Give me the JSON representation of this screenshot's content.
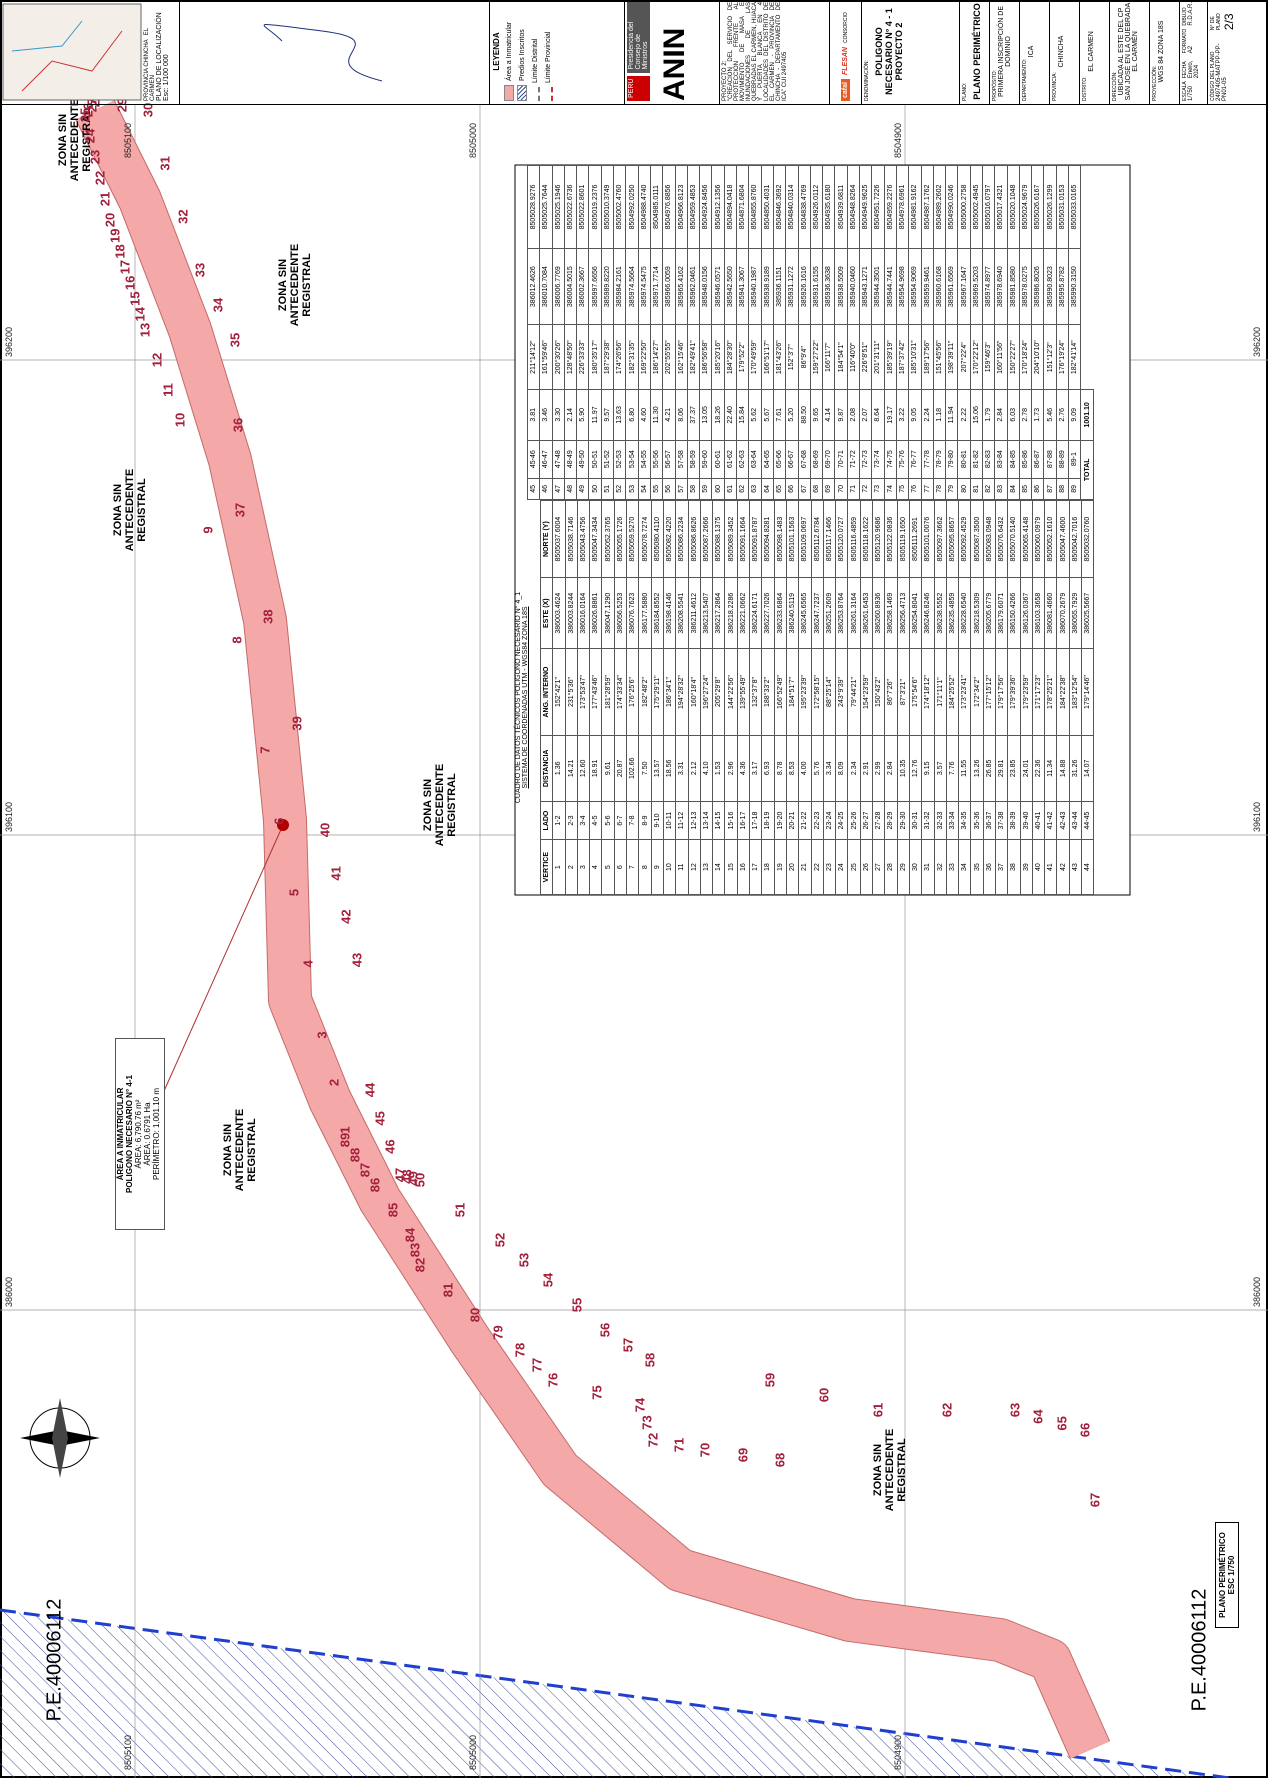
{
  "sheet": {
    "zones": [
      "ZONA SIN ANTECEDENTE REGISTRAL",
      "ZONA SIN ANTECEDENTE REGISTRAL",
      "ZONA SIN ANTECEDENTE REGISTRAL",
      "ZONA SIN ANTECEDENTE REGISTRAL",
      "ZONA SIN ANTECEDENTE REGISTRAL",
      "ZONA SIN ANTECEDENTE REGISTRAL"
    ],
    "callout": [
      "ÁREA A INMATRICULAR",
      "POLIGONO NECESARIO N° 4-1",
      "ÁREA: 6,790.76 m²",
      "ÁREA: 0.6791 Ha",
      "PERÍMETRO: 1,001.10 m"
    ],
    "plan_label": [
      "PLANO PERIMÉTRICO",
      "ESC 1/750"
    ],
    "parcels": [
      "P.E.40006112",
      "P.E.40006112"
    ],
    "eastings": [
      "396200",
      "396100",
      "386000"
    ],
    "northings": [
      "8505100",
      "8505000",
      "8504900"
    ],
    "vertices": [
      1,
      2,
      3,
      4,
      5,
      6,
      7,
      8,
      9,
      10,
      11,
      12,
      13,
      14,
      15,
      16,
      17,
      18,
      19,
      20,
      21,
      22,
      23,
      24,
      25,
      26,
      27,
      28,
      29,
      30,
      31,
      32,
      33,
      34,
      35,
      36,
      37,
      38,
      39,
      40,
      41,
      42,
      43,
      44,
      45,
      46,
      47,
      48,
      49,
      50,
      51,
      52,
      53,
      54,
      55,
      56,
      57,
      58,
      59,
      60,
      61,
      62,
      63,
      64,
      65,
      66,
      67,
      68,
      69,
      70,
      71,
      72,
      73,
      74,
      75,
      76,
      77,
      78,
      79,
      80,
      81,
      82,
      83,
      84,
      85,
      86,
      87,
      88,
      89
    ]
  },
  "table": {
    "title": "CUADRO DE DATOS TÉCNICOS POLIGONO NECESARIO N° 4_1",
    "subtitle": "SISTEMA DE COORDENADAS UTM - WGS84 ZONA 18S",
    "header": [
      "VERTICE",
      "LADO",
      "DISTANCIA",
      "ANG. INTERNO",
      "ESTE (X)",
      "NORTE (Y)"
    ],
    "rows": [
      [
        "1",
        "1-2",
        "1.36",
        "152°42'1\"",
        "386003.4624",
        "8505037.6004"
      ],
      [
        "2",
        "2-3",
        "14.21",
        "231°5'36\"",
        "386003.8244",
        "8505038.7146"
      ],
      [
        "3",
        "3-4",
        "12.60",
        "173°53'47\"",
        "386016.0164",
        "8505043.4756"
      ],
      [
        "4",
        "4-5",
        "18.91",
        "177°43'46\"",
        "386026.8861",
        "8505047.3434"
      ],
      [
        "5",
        "5-6",
        "9.61",
        "181°28'59\"",
        "386047.1290",
        "8505052.3765"
      ],
      [
        "6",
        "6-7",
        "20.87",
        "174°33'34\"",
        "386056.5253",
        "8505055.1726"
      ],
      [
        "7",
        "7-8",
        "102.66",
        "176°25'6\"",
        "386076.7623",
        "8505059.5270"
      ],
      [
        "8",
        "8-9",
        "7.50",
        "182°48'2\"",
        "386177.5880",
        "8505078.7274"
      ],
      [
        "9",
        "9-10",
        "13.57",
        "175°29'11\"",
        "386184.8552",
        "8505080.4110"
      ],
      [
        "10",
        "10-11",
        "18.56",
        "186°34'1\"",
        "386198.4146",
        "8505082.4220"
      ],
      [
        "11",
        "11-12",
        "3.31",
        "194°28'32\"",
        "386208.5541",
        "8505086.2234"
      ],
      [
        "12",
        "12-13",
        "2.12",
        "160°18'4\"",
        "386211.4612",
        "8505086.8626"
      ],
      [
        "13",
        "13-14",
        "4.10",
        "196°27'24\"",
        "386213.5407",
        "8505087.2666"
      ],
      [
        "14",
        "14-15",
        "1.53",
        "205°29'8\"",
        "386217.2864",
        "8505088.1375"
      ],
      [
        "15",
        "15-16",
        "2.96",
        "144°22'56\"",
        "386218.2286",
        "8505089.3452"
      ],
      [
        "16",
        "16-17",
        "4.36",
        "139°55'49\"",
        "386221.0662",
        "8505091.1664"
      ],
      [
        "17",
        "17-18",
        "3.17",
        "132°37'8\"",
        "386224.6171",
        "8505091.8787"
      ],
      [
        "18",
        "18-19",
        "6.93",
        "188°33'2\"",
        "386227.7026",
        "8505094.8281"
      ],
      [
        "19",
        "19-20",
        "8.78",
        "166°52'49\"",
        "386233.6864",
        "8505098.1483"
      ],
      [
        "20",
        "20-21",
        "8.53",
        "184°51'7\"",
        "386240.5119",
        "8505101.1563"
      ],
      [
        "21",
        "21-22",
        "4.00",
        "195°23'39\"",
        "386245.6565",
        "8505109.0697"
      ],
      [
        "22",
        "22-23",
        "5.76",
        "172°58'15\"",
        "386247.7237",
        "8505112.6784"
      ],
      [
        "23",
        "23-24",
        "3.34",
        "88°25'14\"",
        "386251.2609",
        "8505117.1466"
      ],
      [
        "24",
        "24-25",
        "8.09",
        "243°9'39\"",
        "386253.8764",
        "8505120.0727"
      ],
      [
        "25",
        "25-26",
        "2.34",
        "79°44'21\"",
        "386261.3164",
        "8505116.4859"
      ],
      [
        "26",
        "26-27",
        "2.91",
        "154°23'59\"",
        "386261.6453",
        "8505118.1622"
      ],
      [
        "27",
        "27-28",
        "2.99",
        "150°43'2\"",
        "386260.8936",
        "8505120.9686"
      ],
      [
        "28",
        "28-29",
        "2.84",
        "86°7'26\"",
        "386258.1469",
        "8505122.0836"
      ],
      [
        "29",
        "29-30",
        "10.35",
        "87°3'21\"",
        "386256.4713",
        "8505119.1650"
      ],
      [
        "30",
        "30-31",
        "12.76",
        "175°54'6\"",
        "386254.8041",
        "8505111.2691"
      ],
      [
        "31",
        "31-32",
        "9.15",
        "174°18'12\"",
        "386246.8246",
        "8505101.0076"
      ],
      [
        "32",
        "32-33",
        "3.57",
        "171°11'1\"",
        "386238.5552",
        "8505097.3662"
      ],
      [
        "33",
        "33-34",
        "7.76",
        "184°25'52\"",
        "386235.4859",
        "8505095.8657"
      ],
      [
        "34",
        "34-35",
        "11.55",
        "173°23'41\"",
        "386228.6540",
        "8505092.4529"
      ],
      [
        "35",
        "35-36",
        "13.26",
        "172°34'2\"",
        "386218.5309",
        "8505087.3500"
      ],
      [
        "36",
        "36-37",
        "26.85",
        "177°15'12\"",
        "386205.6779",
        "8505083.0948"
      ],
      [
        "37",
        "37-38",
        "29.81",
        "179°17'56\"",
        "386179.6071",
        "8505076.6432"
      ],
      [
        "38",
        "38-39",
        "23.85",
        "179°39'36\"",
        "386150.4266",
        "8505070.5140"
      ],
      [
        "39",
        "39-40",
        "24.01",
        "179°23'59\"",
        "386126.0367",
        "8505065.4148"
      ],
      [
        "40",
        "40-41",
        "22.36",
        "171°17'23\"",
        "386103.3658",
        "8505060.0979"
      ],
      [
        "41",
        "41-42",
        "11.34",
        "178°25'21\"",
        "386081.4660",
        "8505052.1610"
      ],
      [
        "42",
        "42-43",
        "14.88",
        "184°22'38\"",
        "386070.2679",
        "8505047.4600"
      ],
      [
        "43",
        "43-44",
        "31.26",
        "183°12'54\"",
        "386055.7929",
        "8505042.7016"
      ],
      [
        "44",
        "44-45",
        "14.07",
        "179°14'46\"",
        "386025.5667",
        "8505032.0760"
      ],
      [
        "45",
        "45-46",
        "3.81",
        "211°14'12\"",
        "386012.4626",
        "8505028.9276"
      ],
      [
        "46",
        "46-47",
        "3.46",
        "161°59'46\"",
        "386010.7084",
        "8505025.7644"
      ],
      [
        "47",
        "47-48",
        "3.30",
        "200°30'26\"",
        "386006.7769",
        "8505025.1946"
      ],
      [
        "48",
        "48-49",
        "2.14",
        "128°48'50\"",
        "386004.5015",
        "8505022.6736"
      ],
      [
        "49",
        "49-50",
        "5.90",
        "226°33'33\"",
        "386002.3667",
        "8505022.8601"
      ],
      [
        "50",
        "50-51",
        "11.97",
        "180°35'17\"",
        "385997.6656",
        "8505019.2376"
      ],
      [
        "51",
        "51-52",
        "9.57",
        "187°29'38\"",
        "385989.8220",
        "8505010.3749"
      ],
      [
        "52",
        "52-53",
        "13.63",
        "174°26'56\"",
        "385984.2161",
        "8505002.4760"
      ],
      [
        "53",
        "53-54",
        "6.80",
        "182°31'35\"",
        "385974.5664",
        "8504992.0250"
      ],
      [
        "54",
        "54-55",
        "4.60",
        "169°22'50\"",
        "385974.5475",
        "8504988.4740"
      ],
      [
        "55",
        "55-56",
        "11.30",
        "186°14'27\"",
        "385971.7714",
        "8504985.0111"
      ],
      [
        "56",
        "56-57",
        "4.21",
        "202°55'55\"",
        "385966.0059",
        "8504976.8856"
      ],
      [
        "57",
        "57-58",
        "8.06",
        "162°15'46\"",
        "385965.4162",
        "8504966.8123"
      ],
      [
        "58",
        "58-59",
        "37.37",
        "182°49'41\"",
        "385962.0461",
        "8504959.4853"
      ],
      [
        "59",
        "59-60",
        "13.05",
        "186°56'58\"",
        "385948.0156",
        "8504924.8456"
      ],
      [
        "60",
        "60-61",
        "18.26",
        "185°20'16\"",
        "385946.0571",
        "8504912.1356"
      ],
      [
        "61",
        "61-62",
        "22.40",
        "184°28'30\"",
        "385942.5650",
        "8504894.0418"
      ],
      [
        "62",
        "62-63",
        "15.84",
        "179°52'2\"",
        "385941.3067",
        "8504871.6804"
      ],
      [
        "63",
        "63-64",
        "5.62",
        "170°49'59\"",
        "385940.1987",
        "8504855.8760"
      ],
      [
        "64",
        "64-65",
        "5.67",
        "166°51'17\"",
        "385938.9189",
        "8504850.4031"
      ],
      [
        "65",
        "65-66",
        "7.61",
        "181°43'26\"",
        "385936.1151",
        "8504846.3692"
      ],
      [
        "66",
        "66-67",
        "5.20",
        "152°3'7\"",
        "385931.1272",
        "8504840.0314"
      ],
      [
        "67",
        "67-68",
        "88.50",
        "86°9'4\"",
        "385926.1616",
        "8504838.4769"
      ],
      [
        "68",
        "68-69",
        "9.65",
        "159°27'22\"",
        "385931.6155",
        "8504926.0112"
      ],
      [
        "69",
        "69-70",
        "4.14",
        "166°11'7\"",
        "385936.3638",
        "8504935.6180"
      ],
      [
        "70",
        "70-71",
        "9.87",
        "184°54'1\"",
        "385938.5509",
        "8504939.6811"
      ],
      [
        "71",
        "71-72",
        "2.08",
        "116°40'0\"",
        "385940.0460",
        "8504948.8264"
      ],
      [
        "72",
        "72-73",
        "2.07",
        "226°8'51\"",
        "385943.1271",
        "8504949.9625"
      ],
      [
        "73",
        "73-74",
        "8.64",
        "201°31'11\"",
        "385944.3501",
        "8504951.7226"
      ],
      [
        "74",
        "74-75",
        "19.17",
        "185°39'19\"",
        "385944.7441",
        "8504959.2276"
      ],
      [
        "75",
        "75-76",
        "3.22",
        "187°37'42\"",
        "385954.9698",
        "8504978.6961"
      ],
      [
        "76",
        "76-77",
        "9.05",
        "185°10'31\"",
        "385954.9069",
        "8504981.9162"
      ],
      [
        "77",
        "77-78",
        "2.24",
        "189°17'56\"",
        "385959.9461",
        "8504987.1762"
      ],
      [
        "78",
        "78-79",
        "1.18",
        "151°45'56\"",
        "385960.6168",
        "8504989.2602"
      ],
      [
        "79",
        "79-80",
        "11.94",
        "198°39'11\"",
        "385961.6569",
        "8504990.0246"
      ],
      [
        "80",
        "80-81",
        "2.22",
        "207°22'4\"",
        "385967.1647",
        "8505000.2758"
      ],
      [
        "81",
        "81-82",
        "15.06",
        "170°22'12\"",
        "385969.5203",
        "8505002.4945"
      ],
      [
        "82",
        "82-83",
        "1.79",
        "159°46'3\"",
        "385974.8977",
        "8505016.0797"
      ],
      [
        "83",
        "83-84",
        "2.84",
        "160°11'56\"",
        "385978.6940",
        "8505017.4321"
      ],
      [
        "84",
        "84-85",
        "6.03",
        "150°22'27\"",
        "385981.8580",
        "8505020.1048"
      ],
      [
        "85",
        "85-86",
        "2.78",
        "170°18'24\"",
        "385978.0275",
        "8505024.9679"
      ],
      [
        "86",
        "86-87",
        "1.73",
        "204°10'10\"",
        "385986.8026",
        "8505026.6167"
      ],
      [
        "87",
        "87-88",
        "5.46",
        "151°12'3\"",
        "385990.8023",
        "8505026.1299"
      ],
      [
        "88",
        "88-89",
        "2.76",
        "176°19'24\"",
        "385995.8782",
        "8505031.0153"
      ],
      [
        "89",
        "89-1",
        "9.09",
        "182°41'14\"",
        "385990.3150",
        "8505033.0165"
      ]
    ],
    "total_label": "TOTAL",
    "total": "1001.10"
  },
  "title_block": {
    "location_title": "PLANO DE LOCALIZACIÓN",
    "location_scale": "Esc: 1/100 000",
    "location_labels": [
      "PROVINCIA CHINCHA",
      "EL CARMEN"
    ],
    "legend_title": "LEYENDA",
    "legend": [
      "Área a Inmatricular",
      "Predios Inscritos",
      "Límite Distrital",
      "Límite Provincial"
    ],
    "org": [
      "PERÚ",
      "Presidencia del Consejo de Ministros",
      "ANIN"
    ],
    "project_label": "PROYECTO 2:",
    "project": "\"CREACIÓN DEL SERVICIO DE PROTECCIÓN FRENTE AL MOVIMIENTO DE MASA E INUNDACIONES DE LAS QUEBRADAS EL CARMEN, HUACA Y PUERTA BLANCA EN 4 LOCALIDADES DEL DISTRITO DE EL CARMEN - PROVINCIA DE CHINCHA - DEPARTAMENTO DE ICA\" CUI 2497405",
    "contractor": [
      "cafal",
      "FLESAN",
      "CONSORCIO"
    ],
    "fields": [
      [
        "DENOMINACIÓN:",
        "POLIGONO NECESARIO N° 4 - 1 PROYECTO 2"
      ],
      [
        "PLANO:",
        "PLANO PERIMÉTRICO"
      ],
      [
        "PROPÓSITO:",
        "PRIMERA INSCRIPCIÓN DE DOMINIO"
      ],
      [
        "DEPARTAMENTO:",
        "ICA"
      ],
      [
        "PROVINCIA:",
        "CHINCHA"
      ],
      [
        "DISTRITO:",
        "EL CARMEN"
      ],
      [
        "DIRECCIÓN:",
        "UBICADA AL ESTE DEL CP SAN JOSÉ EN LA QUEBRADA EL CARMEN"
      ],
      [
        "PROYECCIÓN:",
        "WGS 84 ZONA 18S"
      ]
    ],
    "footer": [
      [
        "ESCALA",
        "1/750"
      ],
      [
        "FECHA",
        "Enero, 2024"
      ],
      [
        "FORMATO",
        "A2"
      ],
      [
        "DIBUJO",
        "R.D.A.R."
      ]
    ],
    "code_label": "CÓDIGO DEL PLANO",
    "code": "2497405-MATPP-PP-PN01-05",
    "sheet_label": "N° DE PLANO",
    "sheet": "2/3"
  }
}
